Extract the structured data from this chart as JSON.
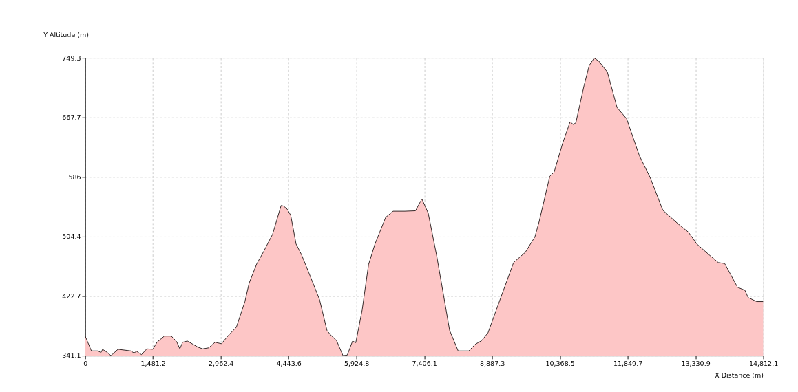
{
  "chart_data": {
    "type": "area",
    "xlabel": "X Distance (m)",
    "ylabel": "Y Altitude (m)",
    "x": [
      0,
      136,
      275,
      345,
      381,
      485,
      563,
      717,
      996,
      1066,
      1122,
      1230,
      1346,
      1477,
      1569,
      1729,
      1882,
      1998,
      2068,
      2128,
      2232,
      2464,
      2567,
      2697,
      2837,
      2976,
      3140,
      3302,
      3489,
      3582,
      3745,
      3899,
      4094,
      4280,
      4336,
      4412,
      4490,
      4607,
      4723,
      4887,
      5119,
      5282,
      5352,
      5492,
      5632,
      5725,
      5841,
      5911,
      6051,
      6190,
      6330,
      6564,
      6726,
      6983,
      7215,
      7355,
      7494,
      7681,
      7821,
      7961,
      8147,
      8380,
      8520,
      8660,
      8799,
      9079,
      9358,
      9614,
      9824,
      9917,
      10149,
      10243,
      10429,
      10592,
      10662,
      10718,
      10896,
      11011,
      11119,
      11221,
      11407,
      11617,
      11826,
      12106,
      12339,
      12618,
      12944,
      13177,
      13363,
      13643,
      13830,
      13970,
      14249,
      14411,
      14481,
      14668,
      14812.1
    ],
    "series": [
      {
        "color": "#fdc6c6",
        "values": [
          368,
          347.6,
          347.6,
          345.3,
          349.8,
          345.3,
          341.1,
          349.8,
          347.6,
          344.7,
          347,
          342.5,
          350.4,
          349.8,
          359.4,
          367.9,
          367.9,
          360.3,
          350.4,
          359.4,
          361.1,
          352.7,
          350.4,
          351.8,
          359.4,
          357.4,
          369.6,
          380,
          415.2,
          440.6,
          466.6,
          483.9,
          507.6,
          547,
          546.2,
          542,
          533.5,
          494.1,
          479.9,
          454.6,
          418,
          375.7,
          370.1,
          361.6,
          341.1,
          341.9,
          361.1,
          358.8,
          403.9,
          465.9,
          494.1,
          530.7,
          539.1,
          539.1,
          539.7,
          556,
          536.3,
          477.2,
          426.5,
          375.7,
          347.6,
          347.6,
          356.6,
          361.6,
          372.4,
          420.8,
          468.7,
          482.8,
          504,
          525.1,
          587,
          592.7,
          632.1,
          661.6,
          658,
          660.3,
          711,
          739.1,
          749,
          744.8,
          729.8,
          681.4,
          665.9,
          615.2,
          585.6,
          540.5,
          522.2,
          510.4,
          494.1,
          478.6,
          468.7,
          467.3,
          434.9,
          430.7,
          420.8,
          415.2,
          415.2
        ]
      }
    ],
    "xlim": [
      0,
      14812.1
    ],
    "xticks": [
      0,
      {
        "value": 1481.2,
        "label": "1,481.2"
      },
      {
        "value": 2962.4,
        "label": "2,962.4"
      },
      {
        "value": 4443.6,
        "label": "4,443.6"
      },
      {
        "value": 5924.8,
        "label": "5,924.8"
      },
      {
        "value": 7406.1,
        "label": "7,406.1"
      },
      {
        "value": 8887.3,
        "label": "8,887.3"
      },
      {
        "value": 10368.5,
        "label": "10,368.5"
      },
      {
        "value": 11849.7,
        "label": "11,849.7"
      },
      {
        "value": 13330.9,
        "label": "13,330.9"
      },
      {
        "value": 14812.1,
        "label": "14,812.1"
      }
    ],
    "ylim": [
      341.1,
      749.3
    ],
    "yticks": [
      341.1,
      422.7,
      504.4,
      586,
      667.7,
      749.3
    ],
    "grid": true,
    "line_style": "solid"
  }
}
